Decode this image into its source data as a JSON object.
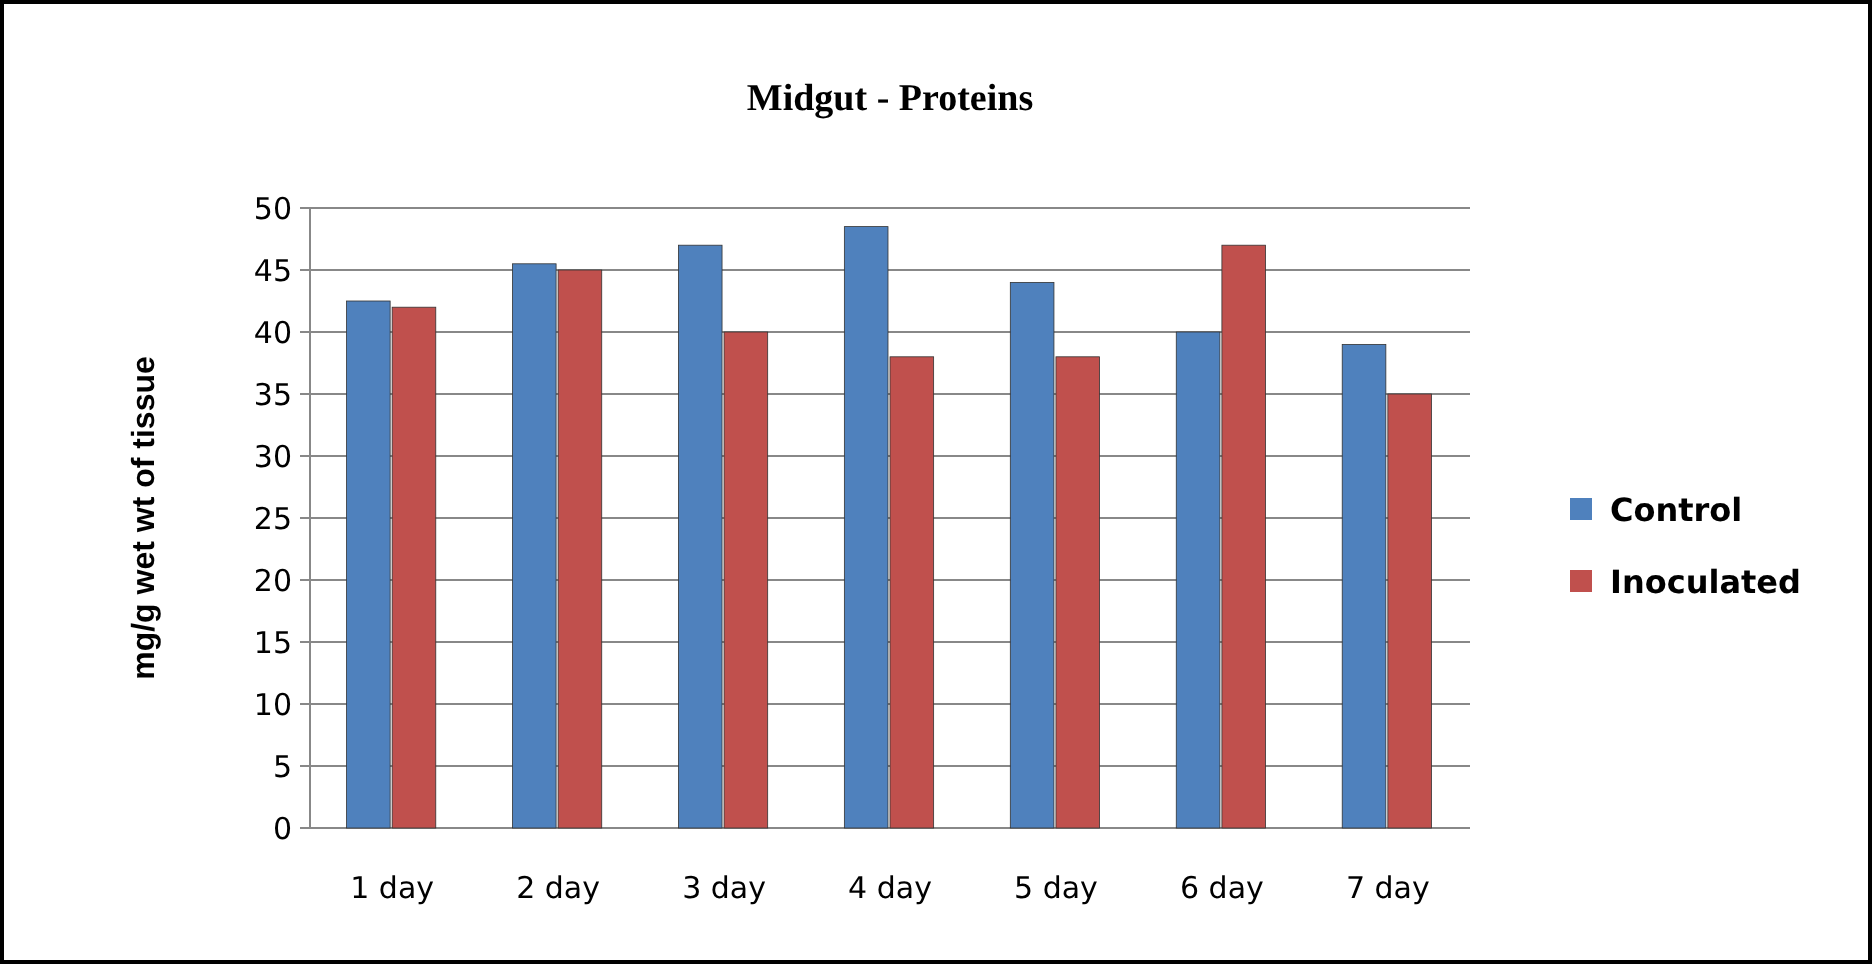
{
  "chart_data": {
    "type": "bar",
    "title": "Midgut - Proteins",
    "ylabel": "mg/g wet wt of tissue",
    "categories": [
      "1 day",
      "2 day",
      "3 day",
      "4 day",
      "5 day",
      "6 day",
      "7 day"
    ],
    "series": [
      {
        "name": "Control",
        "color": "#4f81bd",
        "values": [
          42.5,
          45.5,
          47,
          48.5,
          44,
          40,
          39
        ]
      },
      {
        "name": "Inoculated",
        "color": "#c0504d",
        "values": [
          42,
          45,
          40,
          38,
          38,
          47,
          35
        ]
      }
    ],
    "ylim": [
      0,
      50
    ],
    "yticks": [
      0,
      5,
      10,
      15,
      20,
      25,
      30,
      35,
      40,
      45,
      50
    ],
    "grid": "y",
    "legend": "right"
  }
}
